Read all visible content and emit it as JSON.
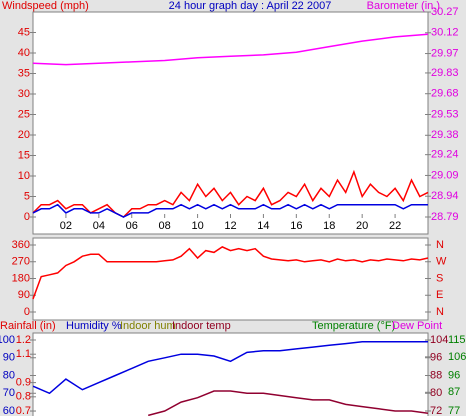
{
  "chart_data": [
    {
      "type": "line",
      "title": "24 hour graph day : April 22 2007",
      "ylabel": "Windspeed (mph)",
      "y2label": "Barometer (in.)",
      "xlim": [
        0,
        24
      ],
      "xticks": [
        {
          "value": 2,
          "label": "02"
        },
        {
          "value": 4,
          "label": "04"
        },
        {
          "value": 6,
          "label": "06"
        },
        {
          "value": 8,
          "label": "08"
        },
        {
          "value": 10,
          "label": "10"
        },
        {
          "value": 12,
          "label": "12"
        },
        {
          "value": 14,
          "label": "14"
        },
        {
          "value": 16,
          "label": "16"
        },
        {
          "value": 18,
          "label": "18"
        },
        {
          "value": 20,
          "label": "20"
        },
        {
          "value": 22,
          "label": "22"
        }
      ],
      "ylim": [
        0,
        50
      ],
      "yticks": [
        0,
        5,
        10,
        15,
        20,
        25,
        30,
        35,
        40,
        45
      ],
      "y2lim": [
        28.79,
        30.27
      ],
      "y2ticks": [
        28.79,
        28.94,
        29.09,
        29.24,
        29.38,
        29.53,
        29.68,
        29.83,
        29.97,
        30.12,
        30.27
      ],
      "series": [
        {
          "color": "#ff0000",
          "x": [
            0,
            0.5,
            1,
            1.5,
            2,
            2.5,
            3,
            3.5,
            4,
            4.5,
            5,
            5.5,
            6,
            6.5,
            7,
            7.5,
            8,
            8.5,
            9,
            9.5,
            10,
            10.5,
            11,
            11.5,
            12,
            12.5,
            13,
            13.5,
            14,
            14.5,
            15,
            15.5,
            16,
            16.5,
            17,
            17.5,
            18,
            18.5,
            19,
            19.5,
            20,
            20.5,
            21,
            21.5,
            22,
            22.5,
            23,
            23.5,
            24
          ],
          "values": [
            1,
            3,
            3,
            4,
            2,
            3,
            3,
            1,
            2,
            3,
            1,
            0,
            2,
            2,
            3,
            3,
            4,
            3,
            6,
            4,
            8,
            5,
            7,
            4,
            6,
            3,
            5,
            4,
            7,
            3,
            4,
            6,
            5,
            8,
            4,
            7,
            5,
            9,
            6,
            11,
            5,
            8,
            6,
            5,
            7,
            4,
            9,
            5,
            6
          ]
        },
        {
          "color": "#0000e0",
          "x": [
            0,
            0.5,
            1,
            1.5,
            2,
            2.5,
            3,
            3.5,
            4,
            4.5,
            5,
            5.5,
            6,
            6.5,
            7,
            7.5,
            8,
            8.5,
            9,
            9.5,
            10,
            10.5,
            11,
            11.5,
            12,
            12.5,
            13,
            13.5,
            14,
            14.5,
            15,
            15.5,
            16,
            16.5,
            17,
            17.5,
            18,
            18.5,
            19,
            19.5,
            20,
            20.5,
            21,
            21.5,
            22,
            22.5,
            23,
            23.5,
            24
          ],
          "values": [
            1,
            2,
            2,
            3,
            1,
            2,
            2,
            1,
            1,
            2,
            1,
            0,
            1,
            1,
            1,
            2,
            2,
            2,
            3,
            2,
            3,
            2,
            3,
            2,
            3,
            2,
            2,
            2,
            3,
            2,
            2,
            3,
            2,
            3,
            2,
            3,
            2,
            3,
            3,
            3,
            3,
            3,
            3,
            3,
            3,
            2,
            3,
            3,
            3
          ]
        },
        {
          "color": "#ff00ff",
          "axis": "y2",
          "x": [
            0,
            2,
            4,
            6,
            8,
            10,
            12,
            14,
            16,
            18,
            20,
            22,
            24
          ],
          "values": [
            29.9,
            29.89,
            29.9,
            29.91,
            29.92,
            29.94,
            29.95,
            29.96,
            29.98,
            30.02,
            30.06,
            30.09,
            30.11
          ]
        }
      ]
    },
    {
      "type": "line",
      "xlim": [
        0,
        24
      ],
      "ylim": [
        0,
        360
      ],
      "yticks": [
        0,
        90,
        180,
        270,
        360
      ],
      "y2lim": [
        0,
        360
      ],
      "y2ticks": [
        {
          "value": 0,
          "label": "N"
        },
        {
          "value": 90,
          "label": "E"
        },
        {
          "value": 180,
          "label": "S"
        },
        {
          "value": 270,
          "label": "W"
        },
        {
          "value": 360,
          "label": "N"
        }
      ],
      "series": [
        {
          "color": "#ff0000",
          "x": [
            0,
            0.5,
            1,
            1.5,
            2,
            2.5,
            3,
            3.5,
            4,
            4.5,
            5,
            5.5,
            6,
            6.5,
            7,
            7.5,
            8,
            8.5,
            9,
            9.5,
            10,
            10.5,
            11,
            11.5,
            12,
            12.5,
            13,
            13.5,
            14,
            14.5,
            15,
            15.5,
            16,
            16.5,
            17,
            17.5,
            18,
            18.5,
            19,
            19.5,
            20,
            20.5,
            21,
            21.5,
            22,
            22.5,
            23,
            23.5,
            24
          ],
          "values": [
            70,
            190,
            200,
            210,
            250,
            270,
            300,
            310,
            310,
            270,
            270,
            270,
            270,
            270,
            270,
            270,
            275,
            280,
            300,
            340,
            290,
            330,
            320,
            350,
            330,
            340,
            330,
            340,
            300,
            285,
            280,
            275,
            280,
            270,
            275,
            280,
            270,
            285,
            275,
            280,
            270,
            280,
            275,
            285,
            280,
            275,
            285,
            280,
            290
          ]
        }
      ]
    },
    {
      "type": "line",
      "xlim": [
        0,
        24
      ],
      "labels": [
        {
          "text": "Rainfall (in)",
          "color": "#e00000"
        },
        {
          "text": "Humidity %",
          "color": "#0000c0"
        },
        {
          "text": "Indoor hum",
          "color": "#808000"
        },
        {
          "text": "Indoor temp",
          "color": "#900020"
        },
        {
          "text": "Temperature (°F)",
          "color": "#008000"
        },
        {
          "text": "Dew Point",
          "color": "#e000e0"
        }
      ],
      "ylim": [
        57.2,
        102.8
      ],
      "yticks": [
        60,
        70,
        80,
        90,
        100
      ],
      "y3lim": [
        0.665,
        1.235
      ],
      "y3ticks": [
        0.7,
        0.8,
        0.9,
        1.1,
        1.2
      ],
      "y2lim": [
        69.75,
        106.25
      ],
      "y2ticks": [
        72,
        80,
        88,
        96,
        104
      ],
      "y4lim": [
        74.3,
        117.7
      ],
      "y4ticks": [
        77,
        87,
        96,
        106,
        115
      ],
      "series": [
        {
          "color": "#0000e0",
          "x": [
            0,
            1,
            2,
            3,
            4,
            5,
            6,
            7,
            8,
            9,
            10,
            11,
            12,
            13,
            14,
            15,
            16,
            17,
            18,
            19,
            20,
            21,
            22,
            23,
            24
          ],
          "values": [
            74,
            70,
            78,
            72,
            76,
            80,
            84,
            88,
            90,
            92,
            92,
            91,
            88,
            93,
            94,
            94,
            95,
            96,
            97,
            98,
            99,
            99,
            99,
            99,
            99
          ]
        },
        {
          "color": "#900030",
          "axis": "y2",
          "x": [
            7,
            8,
            9,
            10,
            11,
            12,
            13,
            14,
            15,
            16,
            17,
            18,
            19,
            20,
            21,
            22,
            23,
            24
          ],
          "values": [
            70,
            72,
            76,
            78,
            81,
            81,
            80,
            80,
            79,
            78,
            77,
            77,
            75,
            74,
            73,
            72,
            72,
            71
          ]
        }
      ]
    }
  ]
}
